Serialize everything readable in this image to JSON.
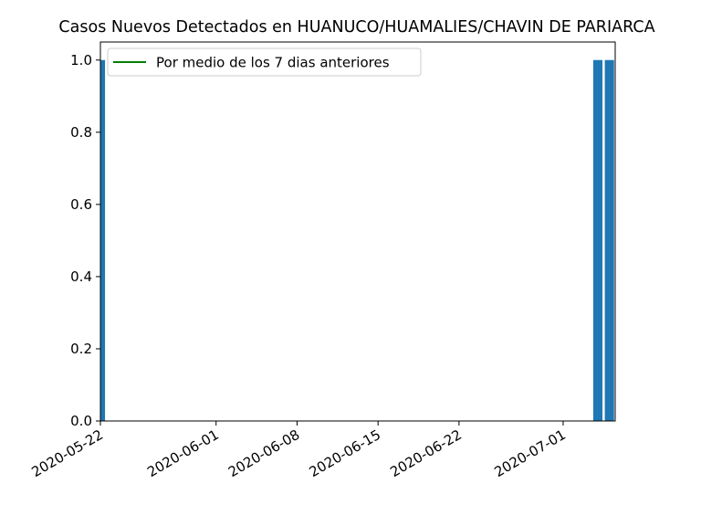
{
  "chart_data": {
    "type": "bar",
    "title": "Casos Nuevos Detectados en HUANUCO/HUAMALIES/CHAVIN DE PARIARCA",
    "xlabel": "",
    "ylabel": "",
    "x_range": [
      "2020-05-22",
      "2020-07-05"
    ],
    "ylim": [
      0,
      1.05
    ],
    "y_ticks": [
      "0.0",
      "0.2",
      "0.4",
      "0.6",
      "0.8",
      "1.0"
    ],
    "x_ticks": [
      "2020-05-22",
      "2020-06-01",
      "2020-06-08",
      "2020-06-15",
      "2020-06-22",
      "2020-07-01"
    ],
    "bars": [
      {
        "date": "2020-05-22",
        "value": 1
      },
      {
        "date": "2020-07-04",
        "value": 1
      },
      {
        "date": "2020-07-05",
        "value": 1
      }
    ],
    "series": [
      {
        "name": "Por medio de los 7 dias anteriores",
        "values": [],
        "color": "#008000"
      }
    ],
    "bar_color": "#1f77b4",
    "legend": {
      "placement": "top-left",
      "entries": [
        "Por medio de los 7 dias anteriores"
      ]
    },
    "grid": false
  }
}
